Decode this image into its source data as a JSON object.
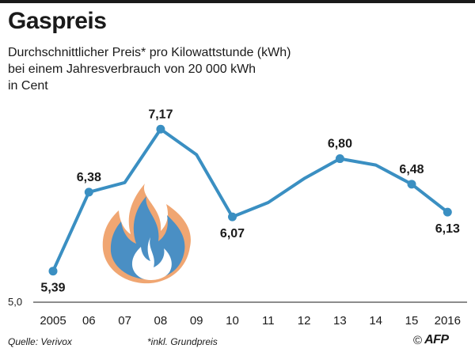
{
  "header": {
    "title": "Gaspreis",
    "subtitle_lines": [
      "Durchschnittlicher Preis* pro Kilowattstunde (kWh)",
      "bei einem Jahresverbrauch von 20 000 kWh",
      "in Cent"
    ]
  },
  "footer": {
    "source": "Quelle: Verivox",
    "note": "*inkl. Grundpreis",
    "credit_symbol": "©",
    "credit_agency": "AFP"
  },
  "colors": {
    "line": "#3a8fc2",
    "flame_outer": "#f0a672",
    "flame_inner": "#4a8fc4",
    "text": "#1a1a1a"
  },
  "icons": [
    "flame-icon"
  ],
  "chart_data": {
    "type": "line",
    "title": "Gaspreis",
    "ylabel": "",
    "xlabel": "",
    "y_axis_min_label": "5,0",
    "ylim": [
      5.0,
      7.5
    ],
    "categories": [
      "2005",
      "06",
      "07",
      "08",
      "09",
      "10",
      "11",
      "12",
      "13",
      "14",
      "15",
      "2016"
    ],
    "values": [
      5.39,
      6.38,
      6.5,
      7.17,
      6.85,
      6.07,
      6.25,
      6.55,
      6.8,
      6.72,
      6.48,
      6.13
    ],
    "data_labels": [
      {
        "index": 0,
        "text": "5,39",
        "position": "below"
      },
      {
        "index": 1,
        "text": "6,38",
        "position": "above"
      },
      {
        "index": 3,
        "text": "7,17",
        "position": "above"
      },
      {
        "index": 5,
        "text": "6,07",
        "position": "below"
      },
      {
        "index": 8,
        "text": "6,80",
        "position": "above"
      },
      {
        "index": 10,
        "text": "6,48",
        "position": "above"
      },
      {
        "index": 11,
        "text": "6,13",
        "position": "below"
      }
    ],
    "grid": false,
    "legend": "none"
  }
}
